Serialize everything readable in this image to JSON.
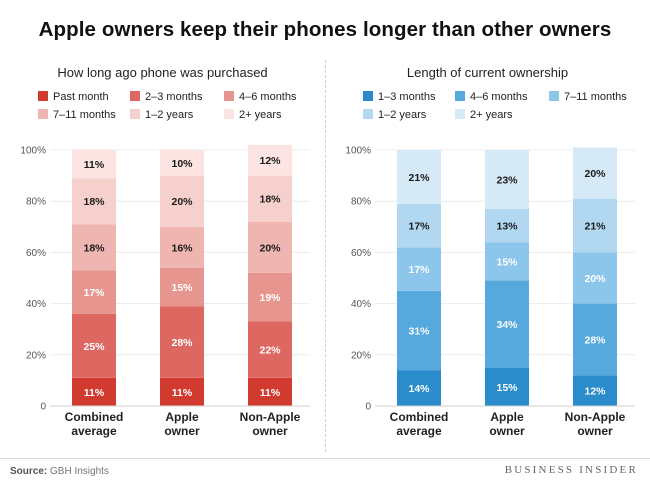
{
  "title": "Apple owners keep their phones longer than other owners",
  "source": {
    "label": "Source:",
    "text": "GBH Insights"
  },
  "brand": "BUSINESS INSIDER",
  "chart_data": [
    {
      "type": "bar",
      "stacked": true,
      "title": "How long ago phone was purchased",
      "categories": [
        "Combined average",
        "Apple owner",
        "Non-Apple owner"
      ],
      "category_lines": [
        [
          "Combined",
          "average"
        ],
        [
          "Apple",
          "owner"
        ],
        [
          "Non-Apple",
          "owner"
        ]
      ],
      "yticks": [
        "0",
        "20%",
        "40%",
        "60%",
        "80%",
        "100%"
      ],
      "ylim": [
        0,
        100
      ],
      "legend_rows": [
        [
          "Past month",
          "2–3 months",
          "4–6 months"
        ],
        [
          "7–11 months",
          "1–2 years",
          "2+ years"
        ]
      ],
      "series": [
        {
          "name": "Past month",
          "color": "#d03a2f",
          "text_color": "#ffffff",
          "values": [
            11,
            11,
            11
          ]
        },
        {
          "name": "2–3 months",
          "color": "#dd6862",
          "text_color": "#ffffff",
          "values": [
            25,
            28,
            22
          ]
        },
        {
          "name": "4–6 months",
          "color": "#e7968f",
          "text_color": "#ffffff",
          "values": [
            17,
            15,
            19
          ]
        },
        {
          "name": "7–11 months",
          "color": "#efb5b0",
          "text_color": "#1a1a1a",
          "values": [
            18,
            16,
            20
          ]
        },
        {
          "name": "1–2 years",
          "color": "#f6d0cd",
          "text_color": "#1a1a1a",
          "values": [
            18,
            20,
            18
          ]
        },
        {
          "name": "2+ years",
          "color": "#fbe4e2",
          "text_color": "#1a1a1a",
          "values": [
            11,
            10,
            12
          ]
        }
      ]
    },
    {
      "type": "bar",
      "stacked": true,
      "title": "Length of current ownership",
      "categories": [
        "Combined average",
        "Apple owner",
        "Non-Apple owner"
      ],
      "category_lines": [
        [
          "Combined",
          "average"
        ],
        [
          "Apple",
          "owner"
        ],
        [
          "Non-Apple",
          "owner"
        ]
      ],
      "yticks": [
        "0",
        "20%",
        "40%",
        "60%",
        "80%",
        "100%"
      ],
      "ylim": [
        0,
        100
      ],
      "legend_rows": [
        [
          "1–3 months",
          "4–6 months",
          "7–11 months"
        ],
        [
          "1–2 years",
          "2+ years"
        ]
      ],
      "series": [
        {
          "name": "1–3 months",
          "color": "#2a8ccb",
          "text_color": "#ffffff",
          "values": [
            14,
            15,
            12
          ]
        },
        {
          "name": "4–6 months",
          "color": "#55a9dc",
          "text_color": "#ffffff",
          "values": [
            31,
            34,
            28
          ]
        },
        {
          "name": "7–11 months",
          "color": "#8cc6ea",
          "text_color": "#ffffff",
          "values": [
            17,
            15,
            20
          ]
        },
        {
          "name": "1–2 years",
          "color": "#b2d8f1",
          "text_color": "#1a1a1a",
          "values": [
            17,
            13,
            21
          ]
        },
        {
          "name": "2+ years",
          "color": "#d5e9f7",
          "text_color": "#1a1a1a",
          "values": [
            21,
            23,
            20
          ]
        }
      ]
    }
  ]
}
